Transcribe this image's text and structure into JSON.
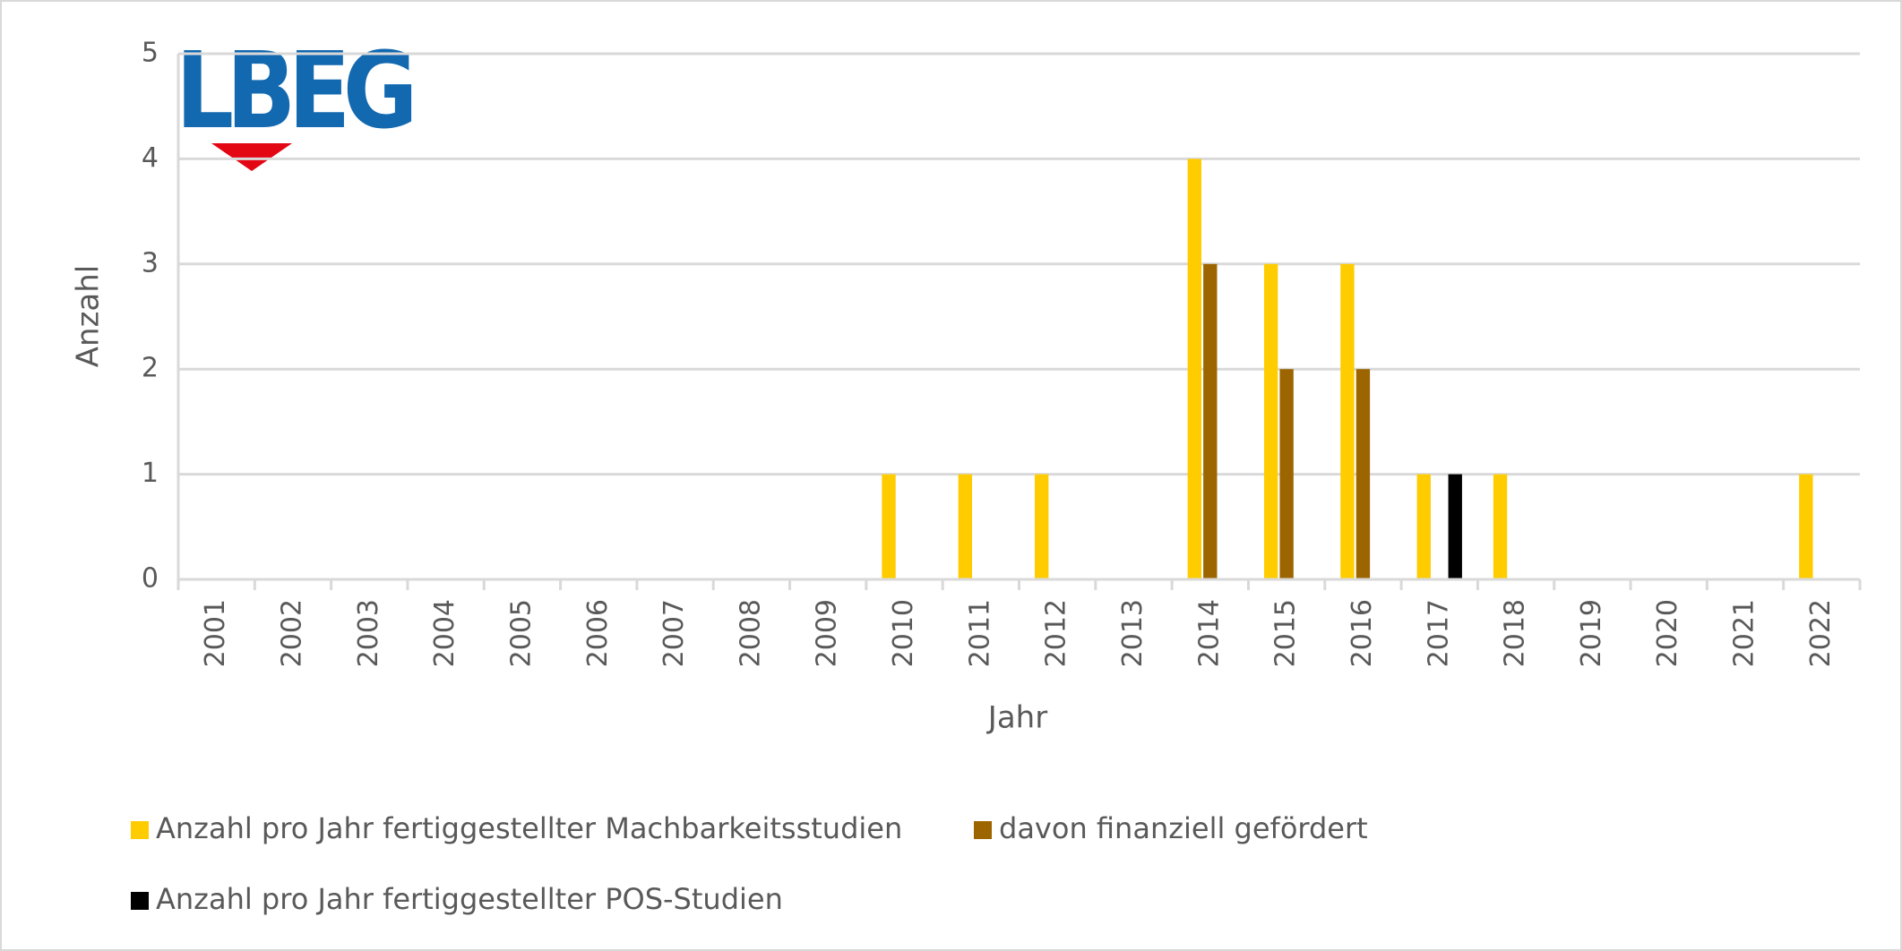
{
  "logo": "LBEG",
  "chart_data": {
    "type": "bar",
    "y_label": "Anzahl",
    "x_label": "Jahr",
    "categories": [
      "2001",
      "2002",
      "2003",
      "2004",
      "2005",
      "2006",
      "2007",
      "2008",
      "2009",
      "2010",
      "2011",
      "2012",
      "2013",
      "2014",
      "2015",
      "2016",
      "2017",
      "2018",
      "2019",
      "2020",
      "2021",
      "2022"
    ],
    "series": [
      {
        "name": "Anzahl pro Jahr fertiggestellter Machbarkeitsstudien",
        "color": "#ffcc00",
        "values": [
          0,
          0,
          0,
          0,
          0,
          0,
          0,
          0,
          0,
          1,
          1,
          1,
          0,
          4,
          3,
          3,
          1,
          1,
          0,
          0,
          0,
          1
        ]
      },
      {
        "name": "davon finanziell gefördert",
        "color": "#9c6500",
        "values": [
          0,
          0,
          0,
          0,
          0,
          0,
          0,
          0,
          0,
          0,
          0,
          0,
          0,
          3,
          2,
          2,
          0,
          0,
          0,
          0,
          0,
          0
        ]
      },
      {
        "name": "Anzahl pro Jahr fertiggestellter POS-Studien",
        "color": "#000000",
        "values": [
          0,
          0,
          0,
          0,
          0,
          0,
          0,
          0,
          0,
          0,
          0,
          0,
          0,
          0,
          0,
          0,
          1,
          0,
          0,
          0,
          0,
          0
        ]
      }
    ],
    "ylim": [
      0,
      5
    ],
    "yticks": [
      0,
      1,
      2,
      3,
      4,
      5
    ],
    "grid": true,
    "legend": "bottom"
  }
}
